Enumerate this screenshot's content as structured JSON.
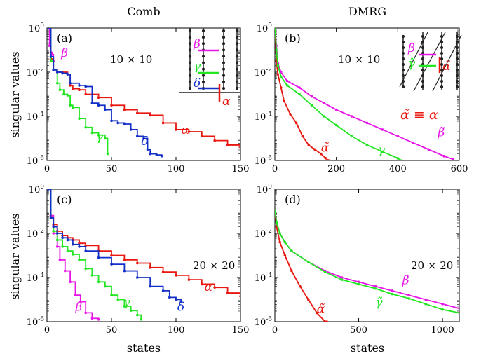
{
  "column_titles": [
    "Comb",
    "DMRG"
  ],
  "ylabel": "singular values",
  "xlabel": "states",
  "ytick_bases": [
    "10",
    "10",
    "10",
    "10"
  ],
  "ytick_exps": [
    "0",
    "-2",
    "-4",
    "-6"
  ],
  "equivalence_note": "α̃ ≡ α",
  "inset_labels": {
    "comb": [
      "β",
      "γ",
      "δ",
      "α"
    ],
    "dmrg": [
      "β̃",
      "γ̃",
      "α̃"
    ]
  },
  "colors": {
    "alpha": "#e8170f",
    "beta": "#e815e8",
    "gamma": "#21e621",
    "delta": "#1230c8"
  },
  "chart_data": [
    {
      "type": "line",
      "panel": "(a)",
      "size_label": "10 × 10",
      "x_ticks": [
        0,
        50,
        100,
        150
      ],
      "xlim": [
        0,
        150
      ],
      "ylim_log10": [
        -6,
        0
      ],
      "yscale": "log",
      "series": [
        {
          "name": "α",
          "color": "#e8170f",
          "x": [
            1,
            3,
            5,
            8,
            12,
            16,
            18,
            20,
            25,
            30,
            40,
            50,
            60,
            70,
            80,
            90,
            100,
            110,
            120,
            130,
            140,
            150
          ],
          "y_log10": [
            0,
            -1.4,
            -1.9,
            -2.0,
            -2.0,
            -2.1,
            -2.6,
            -2.75,
            -2.8,
            -3.0,
            -3.15,
            -3.5,
            -3.7,
            -3.85,
            -3.95,
            -4.3,
            -4.6,
            -4.7,
            -4.9,
            -5.1,
            -5.3,
            -5.4
          ]
        },
        {
          "name": "β",
          "color": "#e815e8",
          "x": [
            1,
            2,
            3,
            4,
            5
          ],
          "y_log10": [
            0,
            -0.8,
            -1.1,
            -1.2,
            -1.5
          ]
        },
        {
          "name": "γ",
          "color": "#21e621",
          "x": [
            1,
            3,
            5,
            8,
            10,
            13,
            16,
            18,
            20,
            25,
            30,
            35,
            40,
            45,
            47
          ],
          "y_log10": [
            0,
            -1.5,
            -1.9,
            -2.5,
            -2.8,
            -3.0,
            -3.05,
            -3.5,
            -3.6,
            -4.1,
            -4.5,
            -4.75,
            -4.85,
            -5.0,
            -5.7
          ]
        },
        {
          "name": "δ",
          "color": "#1230c8",
          "x": [
            1,
            3,
            5,
            8,
            12,
            16,
            18,
            25,
            30,
            35,
            40,
            45,
            50,
            55,
            60,
            65,
            70,
            75,
            78,
            80,
            85,
            89
          ],
          "y_log10": [
            0,
            -1.3,
            -1.9,
            -2.0,
            -2.05,
            -2.1,
            -2.5,
            -2.6,
            -2.65,
            -3.4,
            -3.5,
            -3.7,
            -4.2,
            -4.3,
            -4.35,
            -4.6,
            -4.9,
            -5.0,
            -5.5,
            -5.7,
            -5.75,
            -5.8
          ]
        }
      ],
      "annotations": [
        {
          "text": "β",
          "x": 11,
          "y_log10": -1.3,
          "color": "#e815e8"
        },
        {
          "text": "α",
          "x": 104,
          "y_log10": -4.8,
          "color": "#e8170f"
        },
        {
          "text": "γ",
          "x": 38,
          "y_log10": -5.1,
          "color": "#21e621"
        },
        {
          "text": "δ",
          "x": 73,
          "y_log10": -5.3,
          "color": "#1230c8"
        }
      ]
    },
    {
      "type": "line",
      "panel": "(b)",
      "size_label": "10 × 10",
      "x_ticks": [
        0,
        200,
        400,
        600
      ],
      "xlim": [
        0,
        600
      ],
      "ylim_log10": [
        -6,
        0
      ],
      "yscale": "log",
      "series": [
        {
          "name": "α̃",
          "color": "#e8170f",
          "x": [
            1,
            5,
            10,
            20,
            30,
            50,
            70,
            90,
            110,
            130,
            150,
            165,
            175
          ],
          "y_log10": [
            0,
            -1.5,
            -2.1,
            -2.7,
            -3.3,
            -3.9,
            -4.3,
            -4.9,
            -5.3,
            -5.5,
            -5.7,
            -5.9,
            -6.0
          ]
        },
        {
          "name": "β̃",
          "color": "#e815e8",
          "x": [
            1,
            5,
            10,
            20,
            40,
            80,
            120,
            160,
            200,
            250,
            300,
            350,
            400,
            450,
            500,
            550,
            580
          ],
          "y_log10": [
            0,
            -0.8,
            -1.6,
            -2.0,
            -2.4,
            -2.7,
            -3.1,
            -3.4,
            -3.7,
            -4.0,
            -4.3,
            -4.6,
            -4.9,
            -5.2,
            -5.5,
            -5.8,
            -5.95
          ]
        },
        {
          "name": "γ̃",
          "color": "#21e621",
          "x": [
            1,
            5,
            10,
            20,
            40,
            80,
            120,
            160,
            200,
            250,
            300,
            350,
            400,
            410
          ],
          "y_log10": [
            0,
            -1.0,
            -1.7,
            -2.2,
            -2.6,
            -3.0,
            -3.5,
            -4.0,
            -4.4,
            -4.9,
            -5.3,
            -5.6,
            -5.9,
            -6.0
          ]
        }
      ],
      "annotations": [
        {
          "text": "α̃",
          "x": 150,
          "y_log10": -5.6,
          "color": "#e8170f"
        },
        {
          "text": "γ",
          "x": 335,
          "y_log10": -5.7,
          "color": "#21e621"
        },
        {
          "text": "β̃",
          "x": 530,
          "y_log10": -4.9,
          "color": "#e815e8"
        }
      ]
    },
    {
      "type": "line",
      "panel": "(c)",
      "size_label": "20 × 20",
      "x_ticks": [
        0,
        50,
        100,
        150
      ],
      "xlim": [
        0,
        150
      ],
      "ylim_log10": [
        -6,
        0
      ],
      "yscale": "log",
      "series": [
        {
          "name": "α",
          "color": "#e8170f",
          "x": [
            1,
            3,
            5,
            8,
            12,
            16,
            20,
            25,
            30,
            40,
            50,
            60,
            70,
            80,
            90,
            100,
            110,
            120,
            130,
            140,
            150
          ],
          "y_log10": [
            0,
            -1.2,
            -1.6,
            -1.9,
            -2.1,
            -2.2,
            -2.3,
            -2.45,
            -2.55,
            -2.8,
            -3.0,
            -3.2,
            -3.35,
            -3.55,
            -3.75,
            -3.9,
            -4.1,
            -4.3,
            -4.45,
            -4.7,
            -4.85
          ]
        },
        {
          "name": "β",
          "color": "#e815e8",
          "x": [
            1,
            3,
            5,
            8,
            10,
            14,
            18,
            22,
            26,
            30,
            35,
            40
          ],
          "y_log10": [
            0,
            -1.2,
            -2.0,
            -2.6,
            -3.2,
            -3.7,
            -4.2,
            -4.8,
            -5.1,
            -5.6,
            -5.85,
            -5.9
          ]
        },
        {
          "name": "γ",
          "color": "#21e621",
          "x": [
            1,
            3,
            5,
            8,
            12,
            16,
            20,
            25,
            30,
            35,
            40,
            45,
            50,
            55,
            60,
            65,
            70,
            73
          ],
          "y_log10": [
            0,
            -1.3,
            -1.9,
            -2.3,
            -2.6,
            -2.8,
            -2.95,
            -3.2,
            -3.6,
            -3.9,
            -4.2,
            -4.4,
            -4.8,
            -5.0,
            -5.3,
            -5.5,
            -5.7,
            -5.9
          ]
        },
        {
          "name": "δ",
          "color": "#1230c8",
          "x": [
            1,
            3,
            5,
            8,
            12,
            16,
            20,
            25,
            30,
            40,
            50,
            60,
            70,
            80,
            90,
            95,
            100,
            104
          ],
          "y_log10": [
            0,
            -1.3,
            -1.7,
            -2.0,
            -2.2,
            -2.3,
            -2.5,
            -2.6,
            -2.8,
            -3.1,
            -3.4,
            -3.7,
            -4.0,
            -4.4,
            -4.6,
            -4.9,
            -5.0,
            -5.1
          ]
        }
      ],
      "annotations": [
        {
          "text": "α",
          "x": 122,
          "y_log10": -4.6,
          "color": "#e8170f"
        },
        {
          "text": "β",
          "x": 22,
          "y_log10": -5.5,
          "color": "#e815e8"
        },
        {
          "text": "γ",
          "x": 59,
          "y_log10": -5.3,
          "color": "#21e621"
        },
        {
          "text": "δ",
          "x": 101,
          "y_log10": -5.5,
          "color": "#1230c8"
        }
      ]
    },
    {
      "type": "line",
      "panel": "(d)",
      "size_label": "20 × 20",
      "x_ticks": [
        0,
        500,
        1000
      ],
      "xlim": [
        0,
        1100
      ],
      "ylim_log10": [
        -6,
        0
      ],
      "yscale": "log",
      "series": [
        {
          "name": "α̃",
          "color": "#e8170f",
          "x": [
            1,
            10,
            30,
            60,
            100,
            150,
            200,
            250,
            300,
            310
          ],
          "y_log10": [
            -1,
            -1.7,
            -2.4,
            -3.0,
            -3.7,
            -4.4,
            -5.0,
            -5.6,
            -6.0,
            -6.0
          ]
        },
        {
          "name": "β̃",
          "color": "#e815e8",
          "x": [
            1,
            10,
            30,
            60,
            100,
            200,
            300,
            400,
            500,
            600,
            700,
            800,
            900,
            1000,
            1100
          ],
          "y_log10": [
            -1,
            -1.5,
            -2.0,
            -2.4,
            -2.8,
            -3.3,
            -3.7,
            -4.0,
            -4.2,
            -4.4,
            -4.6,
            -4.8,
            -5.0,
            -5.2,
            -5.4
          ]
        },
        {
          "name": "γ̃",
          "color": "#21e621",
          "x": [
            1,
            10,
            30,
            60,
            100,
            200,
            300,
            400,
            500,
            600,
            700,
            800,
            900,
            1000,
            1100
          ],
          "y_log10": [
            -1,
            -1.5,
            -2.0,
            -2.4,
            -2.8,
            -3.3,
            -3.75,
            -4.1,
            -4.3,
            -4.5,
            -4.75,
            -4.95,
            -5.2,
            -5.45,
            -5.6
          ]
        }
      ],
      "annotations": [
        {
          "text": "α̃",
          "x": 250,
          "y_log10": -5.6,
          "color": "#e8170f"
        },
        {
          "text": "β̃",
          "x": 760,
          "y_log10": -4.3,
          "color": "#e815e8"
        },
        {
          "text": "γ̃",
          "x": 600,
          "y_log10": -5.3,
          "color": "#21e621"
        }
      ]
    }
  ]
}
